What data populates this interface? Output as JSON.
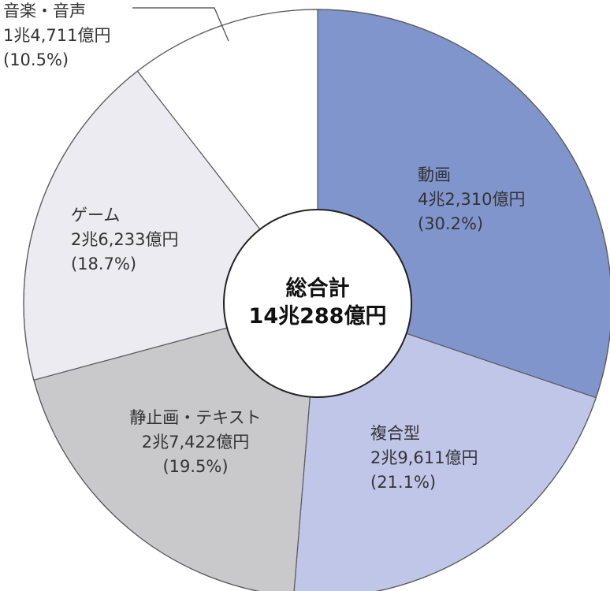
{
  "chart_data": {
    "type": "pie",
    "center": {
      "title": "総合計",
      "total": "14兆288億円"
    },
    "slices": [
      {
        "name": "動画",
        "amount": "4兆2,310億円",
        "percent_label": "(30.2%)",
        "value": 30.2,
        "color": "#7f95cc"
      },
      {
        "name": "複合型",
        "amount": "2兆9,611億円",
        "percent_label": "(21.1%)",
        "value": 21.1,
        "color": "#bfc6e8"
      },
      {
        "name": "静止画・テキスト",
        "amount": "2兆7,422億円",
        "percent_label": "(19.5%)",
        "value": 19.5,
        "color": "#c9c9cc"
      },
      {
        "name": "ゲーム",
        "amount": "2兆6,233億円",
        "percent_label": "(18.7%)",
        "value": 18.7,
        "color": "#ecebf2"
      },
      {
        "name": "音楽・音声",
        "amount": "1兆4,711億円",
        "percent_label": "(10.5%)",
        "value": 10.5,
        "color": "#ffffff"
      }
    ]
  }
}
